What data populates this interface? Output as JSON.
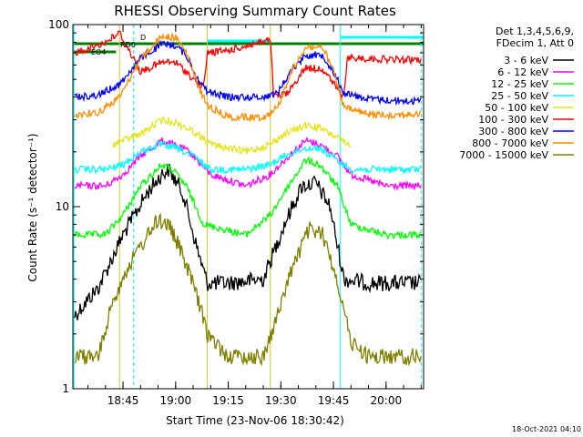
{
  "chart_data": {
    "type": "line",
    "title": "RHESSI Observing Summary Count Rates",
    "xlabel": "Start Time (23-Nov-06 18:30:42)",
    "ylabel": "Count Rate (s⁻¹ detector⁻¹)",
    "yscale": "log",
    "ylim": [
      1,
      100
    ],
    "xlim": [
      "18:30:42",
      "20:10:42"
    ],
    "x_ticks": [
      "18:45",
      "19:00",
      "19:15",
      "19:30",
      "19:45",
      "20:00"
    ],
    "y_ticks": [
      "1",
      "10",
      "100"
    ],
    "timestamp": "18-Oct-2021 04:10",
    "legend_header": [
      "Det 1,3,4,5,6,9,",
      "FDecim 1, Att 0"
    ],
    "flag_labels": [
      "RD0",
      "EO4",
      "D"
    ],
    "grid": false,
    "legend_position": "right",
    "series": [
      {
        "name": "3 - 6 keV",
        "color": "#000000",
        "x": [
          "18:31",
          "18:38",
          "18:45",
          "18:52",
          "18:56",
          "18:58",
          "19:02",
          "19:06",
          "19:09",
          "19:15",
          "19:25",
          "19:31",
          "19:36",
          "19:40",
          "19:44",
          "19:48",
          "19:55",
          "20:05",
          "20:10"
        ],
        "values": [
          2.5,
          3.6,
          7,
          12,
          15,
          16,
          12,
          6,
          3.8,
          3.8,
          4,
          8,
          13,
          13.5,
          10,
          4,
          3.8,
          3.8,
          3.8
        ]
      },
      {
        "name": "6 - 12 keV",
        "color": "#ff00ff",
        "x": [
          "18:31",
          "18:40",
          "18:45",
          "18:50",
          "18:56",
          "18:59",
          "19:04",
          "19:10",
          "19:20",
          "19:27",
          "19:31",
          "19:37",
          "19:41",
          "19:46",
          "19:50",
          "20:00",
          "20:10"
        ],
        "values": [
          13,
          13,
          15,
          19,
          23,
          22,
          20,
          15,
          13,
          15,
          18,
          23,
          22,
          19,
          15,
          13,
          13
        ]
      },
      {
        "name": "12 - 25 keV",
        "color": "#00ff00",
        "x": [
          "18:31",
          "18:40",
          "18:45",
          "18:50",
          "18:56",
          "18:59",
          "19:03",
          "19:08",
          "19:20",
          "19:27",
          "19:31",
          "19:37",
          "19:41",
          "19:46",
          "19:50",
          "20:00",
          "20:10"
        ],
        "values": [
          7,
          7,
          9,
          13,
          17,
          16,
          13,
          8,
          7,
          9,
          12,
          18,
          17,
          13,
          8,
          7,
          7
        ]
      },
      {
        "name": "25 - 50 keV",
        "color": "#00ffff",
        "x": [
          "18:31",
          "18:40",
          "18:45",
          "18:50",
          "18:56",
          "19:00",
          "19:05",
          "19:10",
          "19:20",
          "19:27",
          "19:31",
          "19:37",
          "19:41",
          "19:46",
          "19:50",
          "20:00",
          "20:10"
        ],
        "values": [
          16,
          16,
          17,
          20,
          22,
          21,
          19,
          16,
          16,
          17,
          19,
          21,
          21,
          18,
          16,
          16,
          16
        ]
      },
      {
        "name": "50 - 100 keV",
        "color": "#e5e51a",
        "x": [
          "18:42",
          "18:50",
          "18:56",
          "19:00",
          "19:05",
          "19:10",
          "19:20",
          "19:27",
          "19:31",
          "19:37",
          "19:41",
          "19:46",
          "19:50"
        ],
        "values": [
          22,
          25,
          30,
          29,
          26,
          22,
          20,
          22,
          25,
          28,
          27,
          24,
          21
        ]
      },
      {
        "name": "100 - 300 keV",
        "color": "#ff0000",
        "x": [
          "18:31",
          "18:35",
          "18:40",
          "18:44",
          "18:50",
          "18:56",
          "19:00",
          "19:03",
          "19:06",
          "19:08",
          "19:09",
          "19:15",
          "19:22",
          "19:27",
          "19:28",
          "19:32",
          "19:37",
          "19:42",
          "19:47",
          "19:48",
          "19:49",
          "19:55",
          "20:05",
          "20:10"
        ],
        "values": [
          70,
          74,
          80,
          90,
          55,
          62,
          62,
          55,
          48,
          45,
          70,
          72,
          78,
          82,
          40,
          42,
          58,
          57,
          42,
          40,
          66,
          65,
          64,
          64
        ]
      },
      {
        "name": "300 - 800 keV",
        "color": "#0000ff",
        "x": [
          "18:31",
          "18:38",
          "18:44",
          "18:50",
          "18:56",
          "19:00",
          "19:03",
          "19:06",
          "19:09",
          "19:15",
          "19:25",
          "19:29",
          "19:33",
          "19:37",
          "19:42",
          "19:45",
          "19:48",
          "19:55",
          "20:05",
          "20:10"
        ],
        "values": [
          40,
          41,
          47,
          65,
          78,
          77,
          68,
          52,
          43,
          40,
          40,
          42,
          56,
          68,
          68,
          55,
          42,
          39,
          38,
          38
        ]
      },
      {
        "name": "800 - 7000 keV",
        "color": "#ff8c00",
        "x": [
          "18:31",
          "18:38",
          "18:44",
          "18:50",
          "18:56",
          "19:00",
          "19:03",
          "19:06",
          "19:09",
          "19:15",
          "19:25",
          "19:29",
          "19:33",
          "19:37",
          "19:42",
          "19:45",
          "19:48",
          "19:55",
          "20:05",
          "20:10"
        ],
        "values": [
          32,
          33,
          40,
          65,
          86,
          85,
          70,
          48,
          36,
          31,
          31,
          35,
          55,
          75,
          75,
          55,
          35,
          32,
          32,
          32
        ]
      },
      {
        "name": "7000 - 15000 keV",
        "color": "#808000",
        "x": [
          "18:31",
          "18:38",
          "18:42",
          "18:46",
          "18:51",
          "18:55",
          "18:58",
          "19:01",
          "19:05",
          "19:09",
          "19:15",
          "19:25",
          "19:29",
          "19:33",
          "19:38",
          "19:42",
          "19:46",
          "19:50",
          "19:55",
          "20:05",
          "20:10"
        ],
        "values": [
          1.5,
          1.5,
          3,
          4.5,
          6.5,
          8.5,
          8,
          6,
          3.8,
          2,
          1.5,
          1.5,
          2.5,
          4.5,
          7.5,
          7,
          4,
          1.8,
          1.5,
          1.5,
          1.5
        ]
      }
    ]
  }
}
